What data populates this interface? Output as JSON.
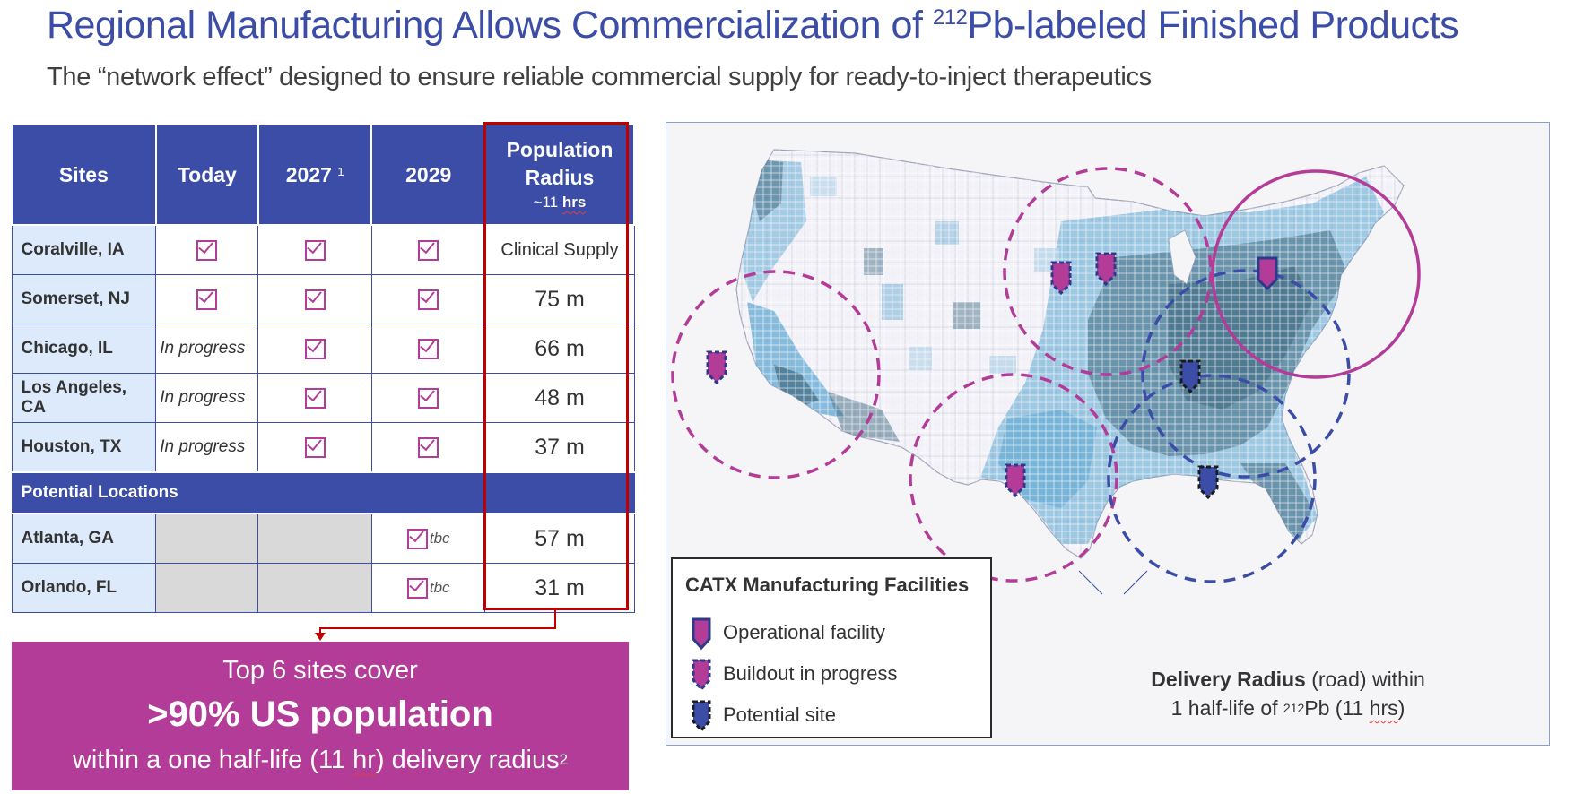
{
  "header": {
    "title_pre": "Regional Manufacturing Allows Commercialization of ",
    "title_sup": "212",
    "title_post": "Pb-labeled Finished Products",
    "subtitle": "The “network effect” designed to ensure reliable commercial supply for ready-to-inject therapeutics"
  },
  "table": {
    "headers": {
      "sites": "Sites",
      "today": "Today",
      "y2027": "2027",
      "y2027_note": "1",
      "y2029": "2029",
      "pop_line1": "Population",
      "pop_line2": "Radius",
      "pop_line3_prefix": "~11 ",
      "pop_line3_unit": "hrs"
    },
    "rows": [
      {
        "site": "Coralville, IA",
        "today": "check",
        "y2027": "check",
        "y2029": "check",
        "radius": "Clinical Supply"
      },
      {
        "site": "Somerset, NJ",
        "today": "check",
        "y2027": "check",
        "y2029": "check",
        "radius": "75 m"
      },
      {
        "site": "Chicago, IL",
        "today": "In progress",
        "y2027": "check",
        "y2029": "check",
        "radius": "66 m"
      },
      {
        "site": "Los Angeles, CA",
        "today": "In progress",
        "y2027": "check",
        "y2029": "check",
        "radius": "48 m"
      },
      {
        "site": "Houston, TX",
        "today": "In progress",
        "y2027": "check",
        "y2029": "check",
        "radius": "37 m"
      }
    ],
    "potential_label": "Potential Locations",
    "potential_rows": [
      {
        "site": "Atlanta, GA",
        "y2029_note": "tbc",
        "radius": "57 m"
      },
      {
        "site": "Orlando, FL",
        "y2029_note": "tbc",
        "radius": "31 m"
      }
    ]
  },
  "callout": {
    "line1": "Top 6 sites cover",
    "line2": ">90% US population",
    "line3_pre": "within a one half-life (11 ",
    "line3_unit": "hr",
    "line3_post": ") delivery radius",
    "line3_sup": "2"
  },
  "legend": {
    "title": "CATX Manufacturing Facilities",
    "items": [
      {
        "label": "Operational facility"
      },
      {
        "label": "Buildout in progress"
      },
      {
        "label": "Potential site"
      }
    ]
  },
  "delivery": {
    "bold": "Delivery Radius",
    "rest1": " (road) within",
    "line2_pre": "1 half-life of ",
    "line2_sup": "212",
    "line2_mid": "Pb (11 ",
    "line2_unit": "hrs",
    "line2_post": ")"
  },
  "colors": {
    "brand_blue": "#3b4da6",
    "magenta": "#b23c98",
    "red": "#c00000",
    "map_dark": "#3f6a82",
    "map_mid": "#5aa5d1",
    "map_light": "#b9d6ea"
  }
}
